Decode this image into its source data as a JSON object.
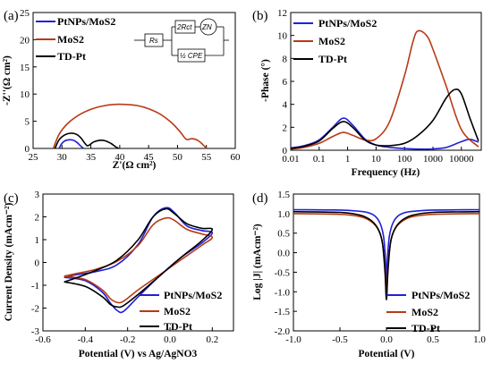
{
  "colors": {
    "pt": "#2020d8",
    "mos2": "#b83a16",
    "td": "#000000"
  },
  "chart_data": [
    {
      "panel": "(a)",
      "type": "scatter",
      "xlabel": "Z'(Ω cm²)",
      "ylabel": "-Z''(Ω cm²)",
      "xlim": [
        25,
        60
      ],
      "ylim": [
        0,
        25
      ],
      "xticks": [
        25,
        30,
        35,
        40,
        45,
        50,
        55,
        60
      ],
      "yticks": [
        0,
        5,
        10,
        15,
        20,
        25
      ],
      "legend": [
        "PtNPs/MoS2",
        "MoS2",
        "TD-Pt"
      ],
      "inset_circuit": {
        "labels": [
          "Rs",
          "2Rct",
          "ZN",
          "½ CPE"
        ]
      },
      "series": [
        {
          "name": "PtNPs/MoS2",
          "color_key": "pt",
          "x": [
            29.5,
            29.9,
            30.5,
            31.3,
            32.0,
            32.6,
            33.1,
            33.5,
            33.8
          ],
          "y": [
            0,
            0.8,
            1.4,
            1.6,
            1.5,
            1.1,
            0.6,
            0.2,
            0
          ]
        },
        {
          "name": "MoS2",
          "color_key": "mos2",
          "x": [
            28.5,
            29.5,
            31.0,
            33.0,
            35.0,
            37.0,
            39.0,
            41.0,
            43.0,
            45.0,
            47.0,
            49.0,
            50.5,
            51.5,
            52.5,
            53.5,
            54.5,
            55.0
          ],
          "y": [
            0,
            2.6,
            4.6,
            6.2,
            7.2,
            7.8,
            8.1,
            8.1,
            7.9,
            7.3,
            6.3,
            4.7,
            3.0,
            1.7,
            1.8,
            1.5,
            0.6,
            0
          ]
        },
        {
          "name": "TD-Pt",
          "color_key": "td",
          "x": [
            28.8,
            29.5,
            30.5,
            31.5,
            32.5,
            33.3,
            34.0,
            34.5,
            35.5,
            36.5,
            37.5,
            38.5,
            39.3,
            39.8
          ],
          "y": [
            0,
            1.6,
            2.5,
            2.8,
            2.6,
            1.9,
            0.9,
            0.5,
            1.2,
            1.5,
            1.4,
            0.9,
            0.3,
            0
          ]
        }
      ]
    },
    {
      "panel": "(b)",
      "type": "line",
      "xlabel": "Frequency (Hz)",
      "ylabel": "-Phase (°)",
      "xscale": "log",
      "xlim": [
        0.01,
        50000
      ],
      "ylim": [
        0,
        12
      ],
      "xticks": [
        0.01,
        0.1,
        1,
        10,
        100,
        1000,
        10000
      ],
      "xticklabels": [
        "0.01",
        "0.1",
        "1",
        "10",
        "100",
        "1000",
        "10000"
      ],
      "yticks": [
        0,
        2,
        4,
        6,
        8,
        10,
        12
      ],
      "legend": [
        "PtNPs/MoS2",
        "MoS2",
        "TD-Pt"
      ],
      "series": [
        {
          "name": "PtNPs/MoS2",
          "color_key": "pt",
          "x": [
            0.01,
            0.03,
            0.1,
            0.3,
            0.7,
            1.5,
            4,
            10,
            30,
            100,
            300,
            1000,
            3000,
            10000,
            20000,
            40000
          ],
          "y": [
            0.2,
            0.4,
            0.9,
            2.0,
            2.8,
            2.2,
            1.0,
            0.45,
            0.25,
            0.15,
            0.1,
            0.12,
            0.25,
            0.75,
            0.95,
            0.7
          ]
        },
        {
          "name": "MoS2",
          "color_key": "mos2",
          "x": [
            0.01,
            0.03,
            0.1,
            0.3,
            0.7,
            1.5,
            4,
            10,
            30,
            100,
            200,
            300,
            600,
            1000,
            3000,
            10000,
            40000
          ],
          "y": [
            0.1,
            0.25,
            0.6,
            1.2,
            1.55,
            1.3,
            0.9,
            1.0,
            2.5,
            6.5,
            9.5,
            10.4,
            10.0,
            8.8,
            5.5,
            1.8,
            0.3
          ]
        },
        {
          "name": "TD-Pt",
          "color_key": "td",
          "x": [
            0.01,
            0.03,
            0.1,
            0.3,
            0.7,
            1.5,
            4,
            10,
            30,
            100,
            300,
            1000,
            3000,
            6000,
            10000,
            20000,
            40000
          ],
          "y": [
            0.15,
            0.35,
            0.8,
            1.9,
            2.5,
            2.0,
            0.9,
            0.45,
            0.4,
            0.6,
            1.3,
            2.6,
            4.6,
            5.3,
            4.9,
            2.8,
            0.8
          ]
        }
      ]
    },
    {
      "panel": "(c)",
      "type": "line",
      "xlabel": "Potential (V) vs Ag/AgNO3",
      "ylabel": "Current Density (mAcm⁻²)",
      "xlim": [
        -0.6,
        0.3
      ],
      "ylim": [
        -3,
        3
      ],
      "xticks": [
        -0.6,
        -0.4,
        -0.2,
        0.0,
        0.2
      ],
      "xticklabels": [
        "-0.6",
        "-0.4",
        "-0.2",
        "0.0",
        "0.2"
      ],
      "yticks": [
        -3,
        -2,
        -1,
        0,
        1,
        2,
        3
      ],
      "legend": [
        "PtNPs/MoS2",
        "MoS2",
        "TD-Pt"
      ],
      "series": [
        {
          "name": "PtNPs/MoS2",
          "color_key": "pt",
          "x": [
            -0.5,
            -0.4,
            -0.32,
            -0.28,
            -0.25,
            -0.22,
            -0.15,
            -0.05,
            0.05,
            0.15,
            0.2,
            0.15,
            0.08,
            0.02,
            -0.02,
            -0.08,
            -0.15,
            -0.25,
            -0.35,
            -0.45,
            -0.5
          ],
          "y": [
            -0.65,
            -0.8,
            -1.3,
            -1.8,
            -2.1,
            -2.15,
            -1.5,
            -0.6,
            0.2,
            0.85,
            1.3,
            1.4,
            1.6,
            2.2,
            2.4,
            2.0,
            0.8,
            -0.1,
            -0.4,
            -0.55,
            -0.65
          ]
        },
        {
          "name": "MoS2",
          "color_key": "mos2",
          "x": [
            -0.5,
            -0.4,
            -0.32,
            -0.28,
            -0.25,
            -0.22,
            -0.15,
            -0.05,
            0.05,
            0.15,
            0.2,
            0.15,
            0.08,
            0.02,
            -0.02,
            -0.08,
            -0.15,
            -0.25,
            -0.35,
            -0.45,
            -0.5
          ],
          "y": [
            -0.6,
            -0.75,
            -1.2,
            -1.6,
            -1.75,
            -1.7,
            -1.2,
            -0.55,
            0.1,
            0.75,
            1.1,
            1.25,
            1.45,
            1.85,
            1.95,
            1.65,
            0.75,
            0.05,
            -0.3,
            -0.5,
            -0.6
          ]
        },
        {
          "name": "TD-Pt",
          "color_key": "td",
          "x": [
            -0.5,
            -0.4,
            -0.32,
            -0.28,
            -0.25,
            -0.22,
            -0.15,
            -0.05,
            0.05,
            0.15,
            0.2,
            0.15,
            0.08,
            0.02,
            -0.02,
            -0.08,
            -0.15,
            -0.25,
            -0.35,
            -0.45,
            -0.5
          ],
          "y": [
            -0.85,
            -1.05,
            -1.5,
            -1.85,
            -1.95,
            -1.9,
            -1.4,
            -0.6,
            0.2,
            0.95,
            1.45,
            1.5,
            1.7,
            2.15,
            2.35,
            2.0,
            1.0,
            0.1,
            -0.35,
            -0.7,
            -0.85
          ]
        }
      ]
    },
    {
      "panel": "(d)",
      "type": "line",
      "xlabel": "Potential (V)",
      "ylabel": "Log |J| (mAcm⁻²)",
      "xlim": [
        -1.0,
        1.0
      ],
      "ylim": [
        -2.0,
        1.5
      ],
      "xticks": [
        -1.0,
        -0.5,
        0.0,
        0.5,
        1.0
      ],
      "xticklabels": [
        "-1.0",
        "-0.5",
        "0.0",
        "0.5",
        "1.0"
      ],
      "yticks": [
        -2.0,
        -1.5,
        -1.0,
        -0.5,
        0.0,
        0.5,
        1.0,
        1.5
      ],
      "yticklabels": [
        "-2.0",
        "-1.5",
        "-1.0",
        "-0.5",
        "0.0",
        "0.5",
        "1.0",
        "1.5"
      ],
      "legend": [
        "PtNPs/MoS2",
        "MoS2",
        "TD-Pt"
      ],
      "series": [
        {
          "name": "PtNPs/MoS2",
          "color_key": "pt",
          "x": [
            -1.0,
            -0.5,
            -0.25,
            -0.15,
            -0.1,
            -0.06,
            -0.03,
            -0.01,
            0.0,
            0.01,
            0.03,
            0.06,
            0.1,
            0.15,
            0.25,
            0.5,
            1.0
          ],
          "y": [
            1.1,
            1.09,
            1.05,
            0.98,
            0.88,
            0.7,
            0.4,
            -0.2,
            -1.0,
            -0.2,
            0.4,
            0.7,
            0.88,
            0.98,
            1.05,
            1.09,
            1.1
          ]
        },
        {
          "name": "MoS2",
          "color_key": "mos2",
          "x": [
            -1.0,
            -0.5,
            -0.3,
            -0.2,
            -0.12,
            -0.07,
            -0.04,
            -0.015,
            0.0,
            0.015,
            0.04,
            0.07,
            0.12,
            0.2,
            0.3,
            0.5,
            1.0
          ],
          "y": [
            1.0,
            0.98,
            0.93,
            0.85,
            0.7,
            0.5,
            0.2,
            -0.4,
            -1.1,
            -0.4,
            0.2,
            0.5,
            0.7,
            0.85,
            0.93,
            0.98,
            1.0
          ]
        },
        {
          "name": "TD-Pt",
          "color_key": "td",
          "x": [
            -1.0,
            -0.5,
            -0.3,
            -0.2,
            -0.12,
            -0.07,
            -0.04,
            -0.015,
            0.0,
            0.015,
            0.04,
            0.07,
            0.12,
            0.2,
            0.3,
            0.5,
            1.0
          ],
          "y": [
            1.05,
            1.03,
            0.97,
            0.88,
            0.72,
            0.5,
            0.2,
            -0.5,
            -1.2,
            -0.5,
            0.2,
            0.5,
            0.72,
            0.88,
            0.97,
            1.03,
            1.05
          ]
        }
      ]
    }
  ]
}
